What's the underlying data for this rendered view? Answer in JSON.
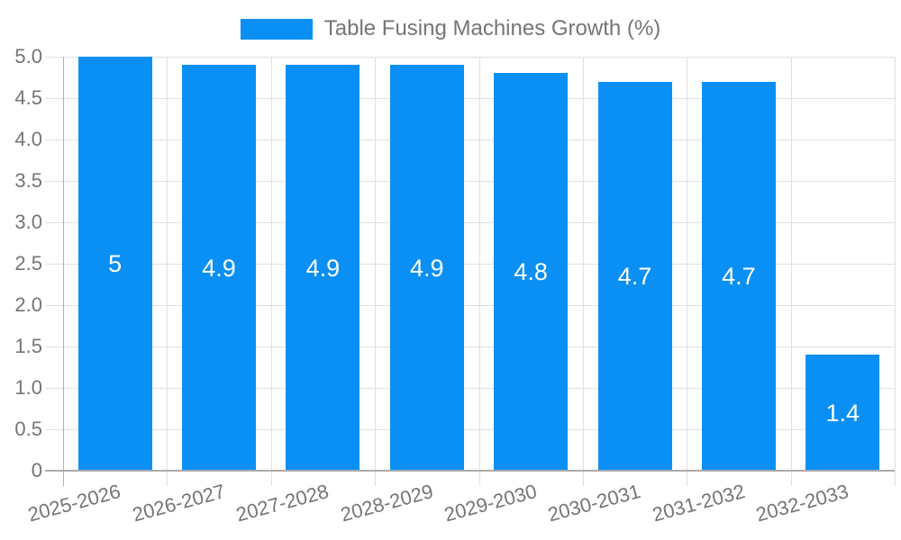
{
  "chart_data": {
    "type": "bar",
    "title": "",
    "legend": {
      "position": "top-center"
    },
    "series": [
      {
        "name": "Table Fusing Machines Growth (%)",
        "color": "#0A90F5",
        "values": [
          5,
          4.9,
          4.9,
          4.9,
          4.8,
          4.7,
          4.7,
          1.4
        ]
      }
    ],
    "categories": [
      "2025-2026",
      "2026-2027",
      "2027-2028",
      "2028-2029",
      "2029-2030",
      "2030-2031",
      "2031-2032",
      "2032-2033"
    ],
    "bar_value_labels": [
      "5",
      "4.9",
      "4.9",
      "4.9",
      "4.8",
      "4.7",
      "4.7",
      "1.4"
    ],
    "xlabel": "",
    "ylabel": "",
    "ylim": [
      0,
      5
    ],
    "grid": true,
    "y_ticks": [
      {
        "label": "5.0",
        "value": 5
      },
      {
        "label": "4.5",
        "value": 4.5
      },
      {
        "label": "4.0",
        "value": 4
      },
      {
        "label": "3.5",
        "value": 3.5
      },
      {
        "label": "3.0",
        "value": 3
      },
      {
        "label": "2.5",
        "value": 2.5
      },
      {
        "label": "2.0",
        "value": 2
      },
      {
        "label": "1.5",
        "value": 1.5
      },
      {
        "label": "1.0",
        "value": 1
      },
      {
        "label": "0.5",
        "value": 0.5
      },
      {
        "label": "0",
        "value": 0
      }
    ],
    "colors": {
      "bar": "#0A90F5",
      "bar_label_text": "#FFFFFF",
      "tick_text": "#757575",
      "legend_text": "#757575",
      "grid_line": "#E0E0E0",
      "axis_line": "#B0B0B0",
      "baseline": "#ABABAB",
      "background": "#FFFFFF"
    }
  }
}
